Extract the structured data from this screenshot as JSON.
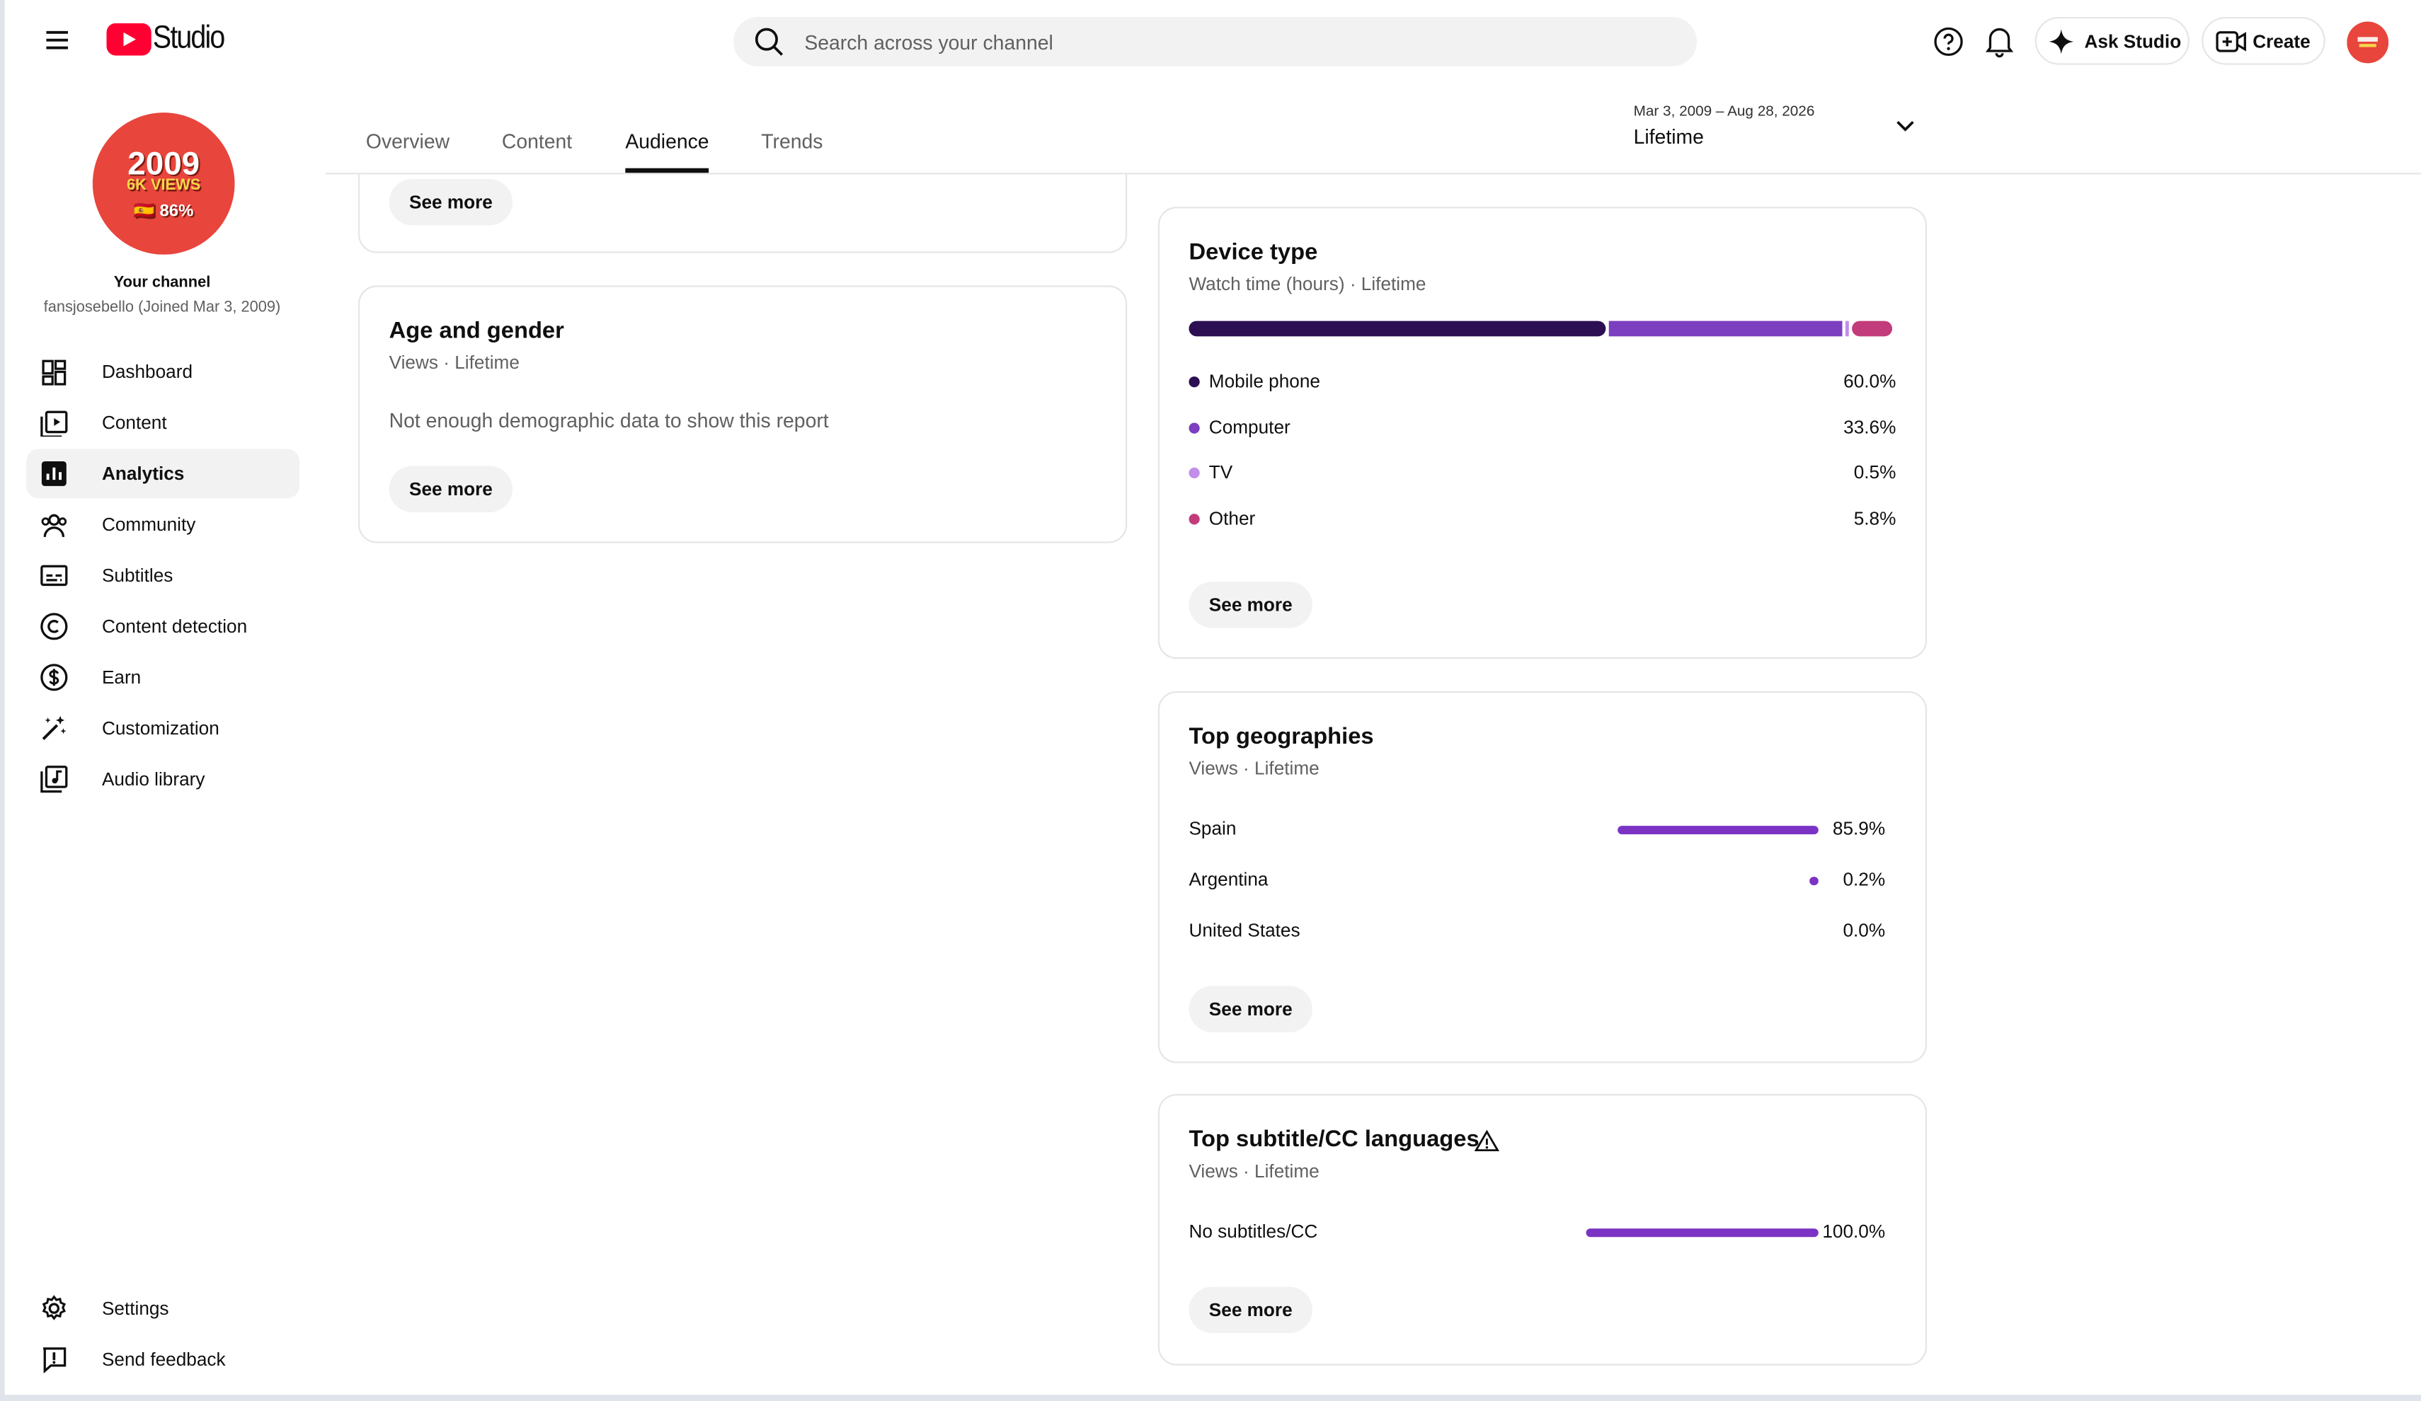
{
  "header": {
    "logo_text": "Studio",
    "search_placeholder": "Search across your channel",
    "ask_studio": "Ask Studio",
    "create": "Create"
  },
  "channel": {
    "avatar_lines": [
      "2009",
      "6K VIEWS",
      "🇪🇸 86%"
    ],
    "title": "Your channel",
    "subtitle": "fansjosebello (Joined Mar 3, 2009)"
  },
  "nav": {
    "items": [
      "Dashboard",
      "Content",
      "Analytics",
      "Community",
      "Subtitles",
      "Content detection",
      "Earn",
      "Customization",
      "Audio library"
    ],
    "active": 2,
    "bottom": [
      "Settings",
      "Send feedback"
    ]
  },
  "tabs": {
    "items": [
      "Overview",
      "Content",
      "Audience",
      "Trends"
    ],
    "active": 2
  },
  "date_range": {
    "range": "Mar 3, 2009 – Aug 28, 2026",
    "label": "Lifetime"
  },
  "cards": {
    "previous": {
      "button": "See more"
    },
    "age_gender": {
      "title": "Age and gender",
      "subtitle": "Views · Lifetime",
      "message": "Not enough demographic data to show this report",
      "button": "See more"
    },
    "device_type": {
      "title": "Device type",
      "subtitle": "Watch time (hours) · Lifetime",
      "button": "See more",
      "items": [
        {
          "name": "Mobile phone",
          "color": "#2b0f52",
          "value": 60.0,
          "label": "60.0%"
        },
        {
          "name": "Computer",
          "color": "#7b3fc0",
          "value": 33.6,
          "label": "33.6%"
        },
        {
          "name": "TV",
          "color": "#c18ee9",
          "value": 0.5,
          "label": "0.5%"
        },
        {
          "name": "Other",
          "color": "#c23c7c",
          "value": 5.8,
          "label": "5.8%"
        }
      ]
    },
    "geographies": {
      "title": "Top geographies",
      "subtitle": "Views · Lifetime",
      "button": "See more",
      "color": "#7b33c4",
      "items": [
        {
          "name": "Spain",
          "value": 85.9,
          "label": "85.9%"
        },
        {
          "name": "Argentina",
          "value": 0.2,
          "label": "0.2%"
        },
        {
          "name": "United States",
          "value": 0.0,
          "label": "0.0%"
        }
      ]
    },
    "subtitles": {
      "title": "Top subtitle/CC languages",
      "subtitle": "Views · Lifetime",
      "button": "See more",
      "color": "#7b33c4",
      "items": [
        {
          "name": "No subtitles/CC",
          "value": 100.0,
          "label": "100.0%"
        }
      ]
    }
  }
}
